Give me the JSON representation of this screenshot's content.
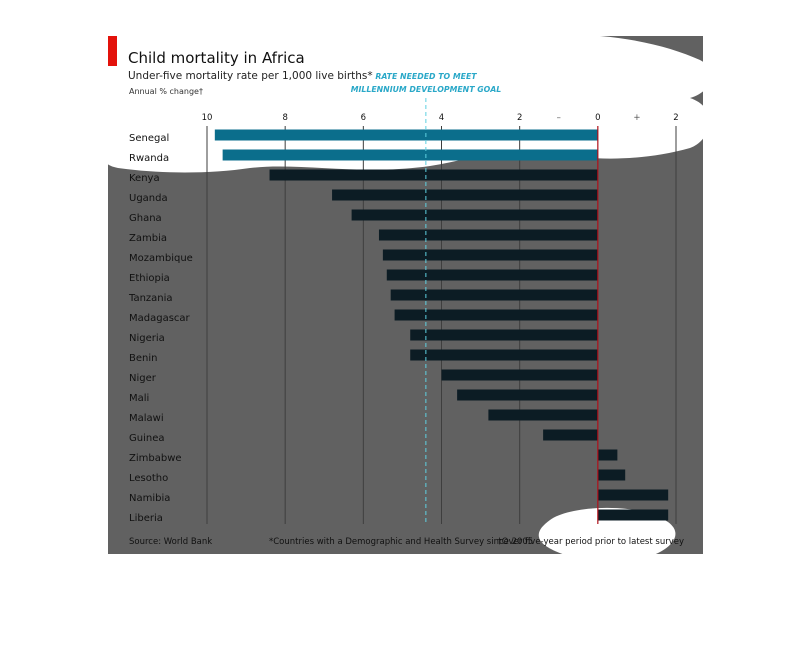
{
  "chart_data": {
    "type": "bar",
    "orientation": "horizontal",
    "title": "Child mortality in Africa",
    "subtitle": "Under-five mortality rate per 1,000 live births*",
    "axis_caption": "Annual % change†",
    "annotation": "RATE NEEDED TO MEET MILLENNIUM DEVELOPMENT GOAL",
    "annotation_lines": [
      "RATE NEEDED TO MEET",
      "MILLENNIUM DEVELOPMENT GOAL"
    ],
    "goal_value": -4.4,
    "categories": [
      "Senegal",
      "Rwanda",
      "Kenya",
      "Uganda",
      "Ghana",
      "Zambia",
      "Mozambique",
      "Ethiopia",
      "Tanzania",
      "Madagascar",
      "Nigeria",
      "Benin",
      "Niger",
      "Mali",
      "Malawi",
      "Guinea",
      "Zimbabwe",
      "Lesotho",
      "Namibia",
      "Liberia"
    ],
    "values": [
      -9.8,
      -9.6,
      -8.4,
      -6.8,
      -6.3,
      -5.6,
      -5.5,
      -5.4,
      -5.3,
      -5.2,
      -4.8,
      -4.8,
      -4.0,
      -3.6,
      -2.8,
      -1.4,
      0.5,
      0.7,
      1.8,
      1.8
    ],
    "highlight": [
      "Senegal",
      "Rwanda"
    ],
    "xlim": [
      -10,
      2
    ],
    "ticks": [
      -10,
      -8,
      -6,
      -4,
      -2,
      0,
      2
    ],
    "tick_labels": [
      "10",
      "8",
      "6",
      "4",
      "2",
      "0",
      "2"
    ],
    "sign_labels": [
      "–",
      "+"
    ],
    "source": "Source: World Bank",
    "footnote1": "*Countries with a Demographic and Health Survey since 2005",
    "footnote2": "†Over five-year period prior to latest survey",
    "colors": {
      "panel": "#616161",
      "bar": "#0c1c24",
      "highlight_bar": "#0b6e8c",
      "gridline": "#3e3e3e",
      "zero_line": "#b0101a",
      "goal_line": "#5fd0e0",
      "text": "#111111",
      "annotation": "#2aa8c8",
      "accent": "#e3120b"
    }
  }
}
